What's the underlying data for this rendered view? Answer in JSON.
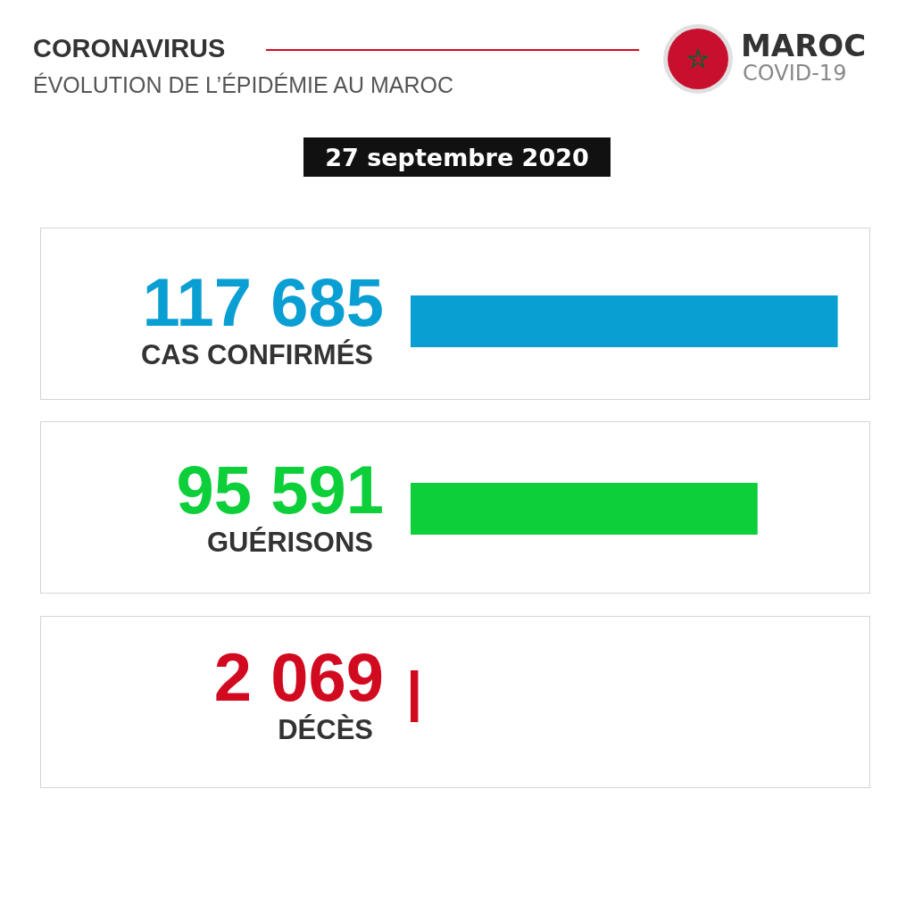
{
  "chart_data": {
    "type": "bar",
    "orientation": "horizontal",
    "title": "CORONAVIRUS",
    "subtitle": "ÉVOLUTION DE L’ÉPIDÉMIE AU MAROC",
    "categories": [
      "CAS CONFIRMÉS",
      "GUÉRISONS",
      "DÉCÈS"
    ],
    "values": [
      117685,
      95591,
      2069
    ],
    "value_labels": [
      "117 685",
      "95 591",
      "2 069"
    ],
    "colors": [
      "#0a9fd3",
      "#0ccf3a",
      "#d10a20"
    ],
    "annotations": [
      "MAROC",
      "COVID-19",
      "27 septembre 2020"
    ]
  }
}
